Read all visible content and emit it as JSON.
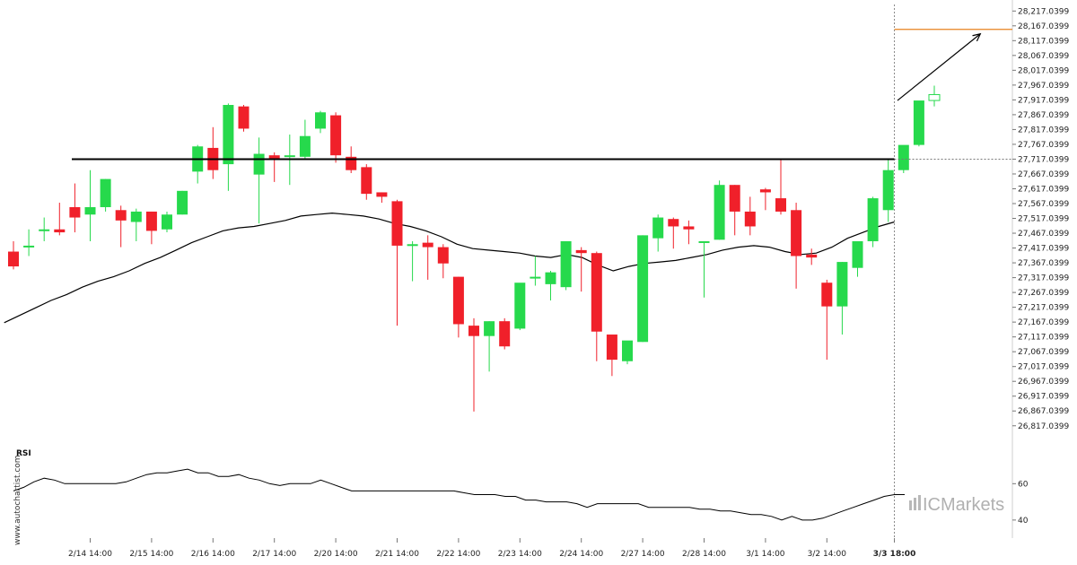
{
  "watermark": "www.autochartist.com",
  "brand": {
    "prefix": "IC",
    "name": "Markets",
    "color": "#a8a8a8"
  },
  "colors": {
    "up": "#26d94c",
    "down": "#f0202a",
    "level": "#000000",
    "ma": "#000000",
    "target": "#e8821e",
    "projection": "#000000"
  },
  "chart_data": {
    "type": "candlestick",
    "y_ticks": [
      "28,217.0399",
      "28,167.0399",
      "28,117.0399",
      "28,067.0399",
      "28,017.0399",
      "27,967.0399",
      "27,917.0399",
      "27,867.0399",
      "27,817.0399",
      "27,767.0399",
      "27,717.0399",
      "27,667.0399",
      "27,617.0399",
      "27,567.0399",
      "27,517.0399",
      "27,467.0399",
      "27,417.0399",
      "27,367.0399",
      "27,317.0399",
      "27,267.0399",
      "27,217.0399",
      "27,167.0399",
      "27,117.0399",
      "27,067.0399",
      "27,017.0399",
      "26,967.0399",
      "26,917.0399",
      "26,867.0399",
      "26,817.0399"
    ],
    "ylim": [
      26780,
      28230
    ],
    "x_ticks": [
      {
        "label": "2/14 14:00",
        "i": 5
      },
      {
        "label": "2/15 14:00",
        "i": 9
      },
      {
        "label": "2/16 14:00",
        "i": 13
      },
      {
        "label": "2/17 14:00",
        "i": 17
      },
      {
        "label": "2/20 14:00",
        "i": 21
      },
      {
        "label": "2/21 14:00",
        "i": 25
      },
      {
        "label": "2/22 14:00",
        "i": 29
      },
      {
        "label": "2/23 14:00",
        "i": 33
      },
      {
        "label": "2/24 14:00",
        "i": 37
      },
      {
        "label": "2/27 14:00",
        "i": 41
      },
      {
        "label": "2/28 14:00",
        "i": 45
      },
      {
        "label": "3/1 14:00",
        "i": 49
      },
      {
        "label": "3/2 14:00",
        "i": 53
      },
      {
        "label": "3/3 18:00",
        "i": 57.4,
        "bold": true
      }
    ],
    "candles": [
      [
        27405,
        27440,
        27355,
        27345
      ],
      [
        27425,
        27480,
        27425,
        27390
      ],
      [
        27480,
        27520,
        27480,
        27440
      ],
      [
        27480,
        27570,
        27470,
        27460
      ],
      [
        27555,
        27635,
        27520,
        27470
      ],
      [
        27530,
        27680,
        27555,
        27440
      ],
      [
        27555,
        27650,
        27650,
        27540
      ],
      [
        27545,
        27560,
        27510,
        27420
      ],
      [
        27505,
        27550,
        27540,
        27440
      ],
      [
        27540,
        27540,
        27475,
        27430
      ],
      [
        27480,
        27540,
        27530,
        27470
      ],
      [
        27530,
        27610,
        27610,
        27530
      ],
      [
        27675,
        27765,
        27760,
        27635
      ],
      [
        27755,
        27825,
        27680,
        27650
      ],
      [
        27700,
        27905,
        27900,
        27610
      ],
      [
        27895,
        27900,
        27820,
        27810
      ],
      [
        27665,
        27790,
        27735,
        27500
      ],
      [
        27730,
        27740,
        27720,
        27640
      ],
      [
        27725,
        27800,
        27730,
        27630
      ],
      [
        27725,
        27850,
        27795,
        27715
      ],
      [
        27820,
        27880,
        27875,
        27805
      ],
      [
        27865,
        27875,
        27730,
        27705
      ],
      [
        27725,
        27760,
        27680,
        27670
      ],
      [
        27690,
        27700,
        27600,
        27580
      ],
      [
        27605,
        27605,
        27590,
        27570
      ],
      [
        27575,
        27580,
        27425,
        27155
      ],
      [
        27430,
        27440,
        27430,
        27305
      ],
      [
        27435,
        27460,
        27420,
        27310
      ],
      [
        27420,
        27430,
        27365,
        27315
      ],
      [
        27320,
        27320,
        27160,
        27115
      ],
      [
        27155,
        27180,
        27120,
        26865
      ],
      [
        27120,
        27170,
        27170,
        27000
      ],
      [
        27170,
        27180,
        27085,
        27075
      ],
      [
        27145,
        27290,
        27300,
        27140
      ],
      [
        27315,
        27390,
        27320,
        27290
      ],
      [
        27295,
        27340,
        27335,
        27240
      ],
      [
        27285,
        27440,
        27440,
        27275
      ],
      [
        27410,
        27420,
        27400,
        27270
      ],
      [
        27400,
        27405,
        27135,
        27035
      ],
      [
        27125,
        27110,
        27040,
        26985
      ],
      [
        27035,
        27095,
        27105,
        27025
      ],
      [
        27100,
        27460,
        27460,
        27100
      ],
      [
        27450,
        27530,
        27520,
        27405
      ],
      [
        27515,
        27520,
        27490,
        27415
      ],
      [
        27490,
        27510,
        27480,
        27430
      ],
      [
        27440,
        27440,
        27440,
        27250
      ],
      [
        27445,
        27645,
        27630,
        27445
      ],
      [
        27630,
        27630,
        27540,
        27460
      ],
      [
        27540,
        27590,
        27490,
        27460
      ],
      [
        27615,
        27620,
        27605,
        27545
      ],
      [
        27585,
        27720,
        27540,
        27530
      ],
      [
        27545,
        27570,
        27390,
        27280
      ],
      [
        27395,
        27415,
        27385,
        27360
      ],
      [
        27300,
        27310,
        27220,
        27040
      ],
      [
        27220,
        27370,
        27370,
        27125
      ],
      [
        27350,
        27410,
        27440,
        27320
      ],
      [
        27440,
        27590,
        27585,
        27420
      ],
      [
        27545,
        27720,
        27680,
        27505
      ],
      [
        27680,
        27710,
        27765,
        27670
      ],
      [
        27765,
        27800,
        27915,
        27760
      ],
      [
        27915,
        27965,
        27935,
        27895
      ]
    ],
    "ma": [
      27165,
      27190,
      27215,
      27240,
      27260,
      27285,
      27305,
      27320,
      27340,
      27365,
      27385,
      27410,
      27435,
      27455,
      27475,
      27485,
      27490,
      27500,
      27510,
      27525,
      27530,
      27535,
      27530,
      27525,
      27515,
      27500,
      27490,
      27475,
      27455,
      27430,
      27415,
      27410,
      27405,
      27400,
      27390,
      27385,
      27395,
      27385,
      27360,
      27340,
      27355,
      27365,
      27370,
      27375,
      27385,
      27395,
      27410,
      27420,
      27425,
      27420,
      27405,
      27395,
      27400,
      27420,
      27450,
      27470,
      27490,
      27505
    ],
    "support_level": 27717.0399,
    "target_level": 28155,
    "projection": {
      "from": [
        57.6,
        27915
      ],
      "to": [
        63,
        28140
      ]
    },
    "rsi": {
      "label": "RSI",
      "ticks": [
        60,
        40
      ],
      "ylim": [
        35,
        72
      ],
      "values": [
        56,
        58,
        61,
        63,
        62,
        60,
        60,
        60,
        60,
        60,
        60,
        61,
        63,
        65,
        66,
        66,
        67,
        68,
        66,
        66,
        64,
        64,
        65,
        63,
        62,
        60,
        59,
        60,
        60,
        60,
        62,
        60,
        58,
        56,
        56,
        56,
        56,
        56,
        56,
        56,
        56,
        56,
        56,
        56,
        55,
        54,
        54,
        54,
        53,
        53,
        51,
        51,
        50,
        50,
        50,
        49,
        47,
        49,
        49,
        49,
        49,
        49,
        47,
        47,
        47,
        47,
        47,
        46,
        46,
        45,
        45,
        44,
        43,
        43,
        42,
        40,
        42,
        40,
        40,
        41,
        43,
        45,
        47,
        49,
        51,
        53,
        54,
        54
      ]
    }
  }
}
